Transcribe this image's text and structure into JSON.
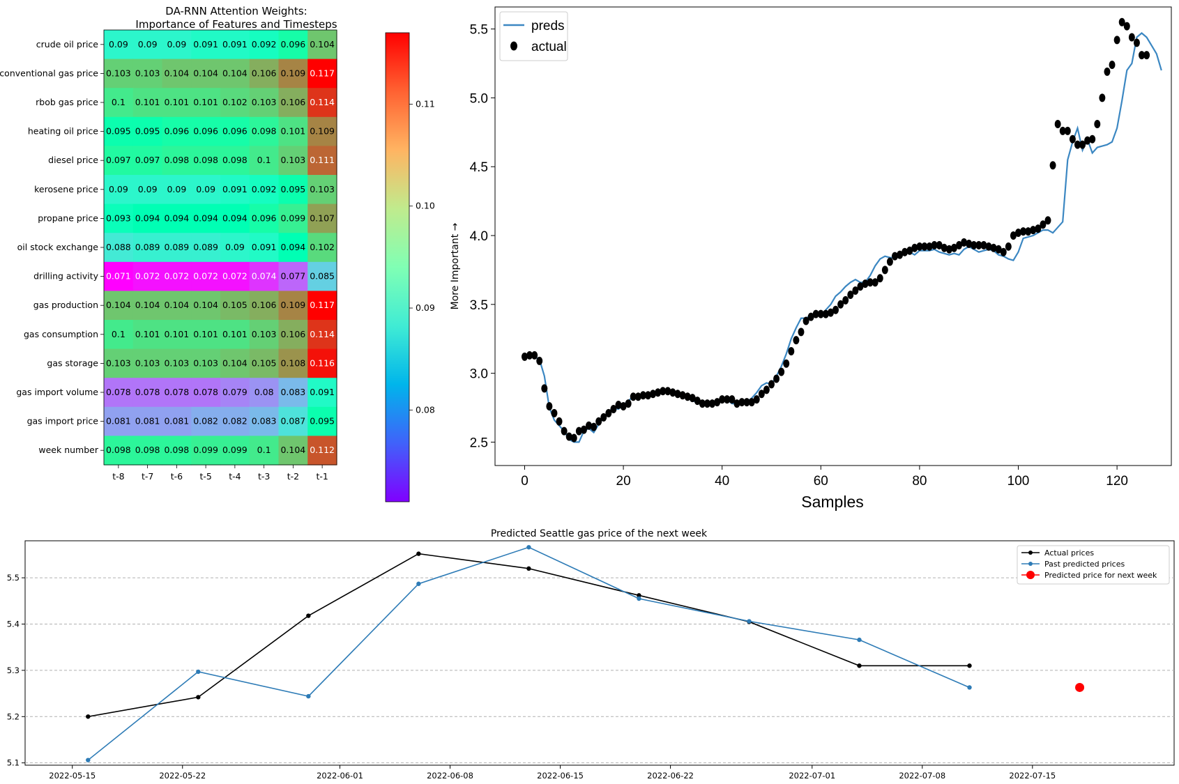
{
  "chart_data": [
    {
      "type": "heatmap",
      "title_line1": "DA-RNN Attention Weights:",
      "title_line2": "Importance of Features and Timesteps",
      "rows": [
        "crude oil price",
        "conventional gas price",
        "rbob gas price",
        "heating oil price",
        "diesel price",
        "kerosene price",
        "propane price",
        "oil stock exchange",
        "drilling activity",
        "gas production",
        "gas consumption",
        "gas storage",
        "gas import volume",
        "gas import price",
        "week number"
      ],
      "columns": [
        "t-8",
        "t-7",
        "t-6",
        "t-5",
        "t-4",
        "t-3",
        "t-2",
        "t-1"
      ],
      "values": [
        [
          0.09,
          0.09,
          0.09,
          0.091,
          0.091,
          0.092,
          0.096,
          0.104
        ],
        [
          0.103,
          0.103,
          0.104,
          0.104,
          0.104,
          0.106,
          0.109,
          0.117
        ],
        [
          0.1,
          0.101,
          0.101,
          0.101,
          0.102,
          0.103,
          0.106,
          0.114
        ],
        [
          0.095,
          0.095,
          0.096,
          0.096,
          0.096,
          0.098,
          0.101,
          0.109
        ],
        [
          0.097,
          0.097,
          0.098,
          0.098,
          0.098,
          0.1,
          0.103,
          0.111
        ],
        [
          0.09,
          0.09,
          0.09,
          0.09,
          0.091,
          0.092,
          0.095,
          0.103
        ],
        [
          0.093,
          0.094,
          0.094,
          0.094,
          0.094,
          0.096,
          0.099,
          0.107
        ],
        [
          0.088,
          0.089,
          0.089,
          0.089,
          0.09,
          0.091,
          0.094,
          0.102
        ],
        [
          0.071,
          0.072,
          0.072,
          0.072,
          0.072,
          0.074,
          0.077,
          0.085
        ],
        [
          0.104,
          0.104,
          0.104,
          0.104,
          0.105,
          0.106,
          0.109,
          0.117
        ],
        [
          0.1,
          0.101,
          0.101,
          0.101,
          0.101,
          0.103,
          0.106,
          0.114
        ],
        [
          0.103,
          0.103,
          0.103,
          0.103,
          0.104,
          0.105,
          0.108,
          0.116
        ],
        [
          0.078,
          0.078,
          0.078,
          0.078,
          0.079,
          0.08,
          0.083,
          0.091
        ],
        [
          0.081,
          0.081,
          0.081,
          0.082,
          0.082,
          0.083,
          0.087,
          0.095
        ],
        [
          0.098,
          0.098,
          0.098,
          0.099,
          0.099,
          0.1,
          0.104,
          0.112
        ]
      ],
      "colormap": "rainbow",
      "vmin": 0.071,
      "vmax": 0.117,
      "colorbar_ticks": [
        "0.08",
        "0.09",
        "0.10",
        "0.11"
      ],
      "colorbar_label": "More Important →"
    },
    {
      "type": "line",
      "xlabel": "Samples",
      "xlim": [
        -6,
        131
      ],
      "ylim": [
        2.33,
        5.66
      ],
      "x_ticks": [
        "0",
        "20",
        "40",
        "60",
        "80",
        "100",
        "120"
      ],
      "y_ticks": [
        "2.5",
        "3.0",
        "3.5",
        "4.0",
        "4.5",
        "5.0",
        "5.5"
      ],
      "legend": "top-left",
      "series": [
        {
          "name": "preds",
          "style": "line",
          "color": "#3b87c2",
          "values": [
            3.12,
            3.13,
            3.12,
            3.1,
            2.98,
            2.75,
            2.66,
            2.62,
            2.58,
            2.52,
            2.5,
            2.5,
            2.58,
            2.6,
            2.57,
            2.63,
            2.68,
            2.72,
            2.75,
            2.74,
            2.77,
            2.8,
            2.83,
            2.84,
            2.84,
            2.85,
            2.86,
            2.87,
            2.88,
            2.88,
            2.86,
            2.85,
            2.83,
            2.82,
            2.8,
            2.79,
            2.77,
            2.77,
            2.78,
            2.8,
            2.8,
            2.81,
            2.78,
            2.78,
            2.79,
            2.79,
            2.82,
            2.86,
            2.91,
            2.93,
            2.92,
            2.98,
            3.05,
            3.14,
            3.25,
            3.33,
            3.4,
            3.4,
            3.42,
            3.42,
            3.42,
            3.46,
            3.5,
            3.56,
            3.59,
            3.63,
            3.66,
            3.68,
            3.66,
            3.66,
            3.71,
            3.78,
            3.83,
            3.85,
            3.84,
            3.84,
            3.86,
            3.9,
            3.88,
            3.86,
            3.89,
            3.89,
            3.89,
            3.9,
            3.88,
            3.87,
            3.86,
            3.87,
            3.86,
            3.9,
            3.92,
            3.9,
            3.88,
            3.89,
            3.9,
            3.89,
            3.86,
            3.85,
            3.83,
            3.82,
            3.88,
            3.98,
            3.99,
            4.0,
            4.02,
            4.04,
            4.04,
            4.02,
            4.06,
            4.1,
            4.55,
            4.68,
            4.78,
            4.62,
            4.7,
            4.6,
            4.64,
            4.65,
            4.66,
            4.68,
            4.78,
            4.98,
            5.2,
            5.25,
            5.44,
            5.47,
            5.44,
            5.38,
            5.32,
            5.2
          ]
        },
        {
          "name": "actual",
          "style": "markers",
          "color": "#000000",
          "values": [
            3.12,
            3.13,
            3.13,
            3.09,
            2.89,
            2.76,
            2.71,
            2.65,
            2.58,
            2.54,
            2.53,
            2.58,
            2.59,
            2.62,
            2.61,
            2.65,
            2.68,
            2.71,
            2.74,
            2.77,
            2.76,
            2.78,
            2.83,
            2.83,
            2.84,
            2.84,
            2.85,
            2.86,
            2.87,
            2.87,
            2.86,
            2.85,
            2.84,
            2.83,
            2.82,
            2.8,
            2.78,
            2.78,
            2.78,
            2.79,
            2.81,
            2.81,
            2.81,
            2.78,
            2.79,
            2.79,
            2.79,
            2.81,
            2.85,
            2.88,
            2.92,
            2.96,
            3.01,
            3.07,
            3.16,
            3.24,
            3.3,
            3.38,
            3.41,
            3.43,
            3.43,
            3.43,
            3.44,
            3.46,
            3.5,
            3.53,
            3.57,
            3.6,
            3.63,
            3.65,
            3.66,
            3.66,
            3.69,
            3.75,
            3.81,
            3.85,
            3.86,
            3.88,
            3.89,
            3.91,
            3.92,
            3.92,
            3.92,
            3.93,
            3.93,
            3.91,
            3.9,
            3.91,
            3.93,
            3.95,
            3.94,
            3.93,
            3.93,
            3.93,
            3.92,
            3.91,
            3.9,
            3.88,
            3.92,
            4.0,
            4.02,
            4.03,
            4.03,
            4.04,
            4.05,
            4.08,
            4.11,
            4.51,
            4.81,
            4.76,
            4.76,
            4.7,
            4.66,
            4.66,
            4.69,
            4.7,
            4.81,
            5.0,
            5.19,
            5.24,
            5.42,
            5.55,
            5.52,
            5.44,
            5.4,
            5.31,
            5.31
          ]
        }
      ]
    },
    {
      "type": "line",
      "title": "Predicted Seattle gas price of the next week",
      "x_ticks": [
        "2022-05-15",
        "2022-05-22",
        "2022-06-01",
        "2022-06-08",
        "2022-06-15",
        "2022-06-22",
        "2022-07-01",
        "2022-07-08",
        "2022-07-15"
      ],
      "y_ticks": [
        "5.1",
        "5.2",
        "5.3",
        "5.4",
        "5.5"
      ],
      "xlim": [
        "2022-05-12",
        "2022-07-24"
      ],
      "ylim": [
        5.095,
        5.58
      ],
      "grid_y": true,
      "legend": "top-right",
      "series": [
        {
          "name": "Actual prices",
          "color": "#000000",
          "x": [
            "2022-05-16",
            "2022-05-23",
            "2022-05-30",
            "2022-06-06",
            "2022-06-13",
            "2022-06-20",
            "2022-06-27",
            "2022-07-04",
            "2022-07-11"
          ],
          "values": [
            5.2,
            5.242,
            5.418,
            5.552,
            5.52,
            5.462,
            5.405,
            5.31,
            5.31
          ]
        },
        {
          "name": "Past predicted prices",
          "color": "#2d7bb6",
          "x": [
            "2022-05-16",
            "2022-05-23",
            "2022-05-30",
            "2022-06-06",
            "2022-06-13",
            "2022-06-20",
            "2022-06-27",
            "2022-07-04",
            "2022-07-11"
          ],
          "values": [
            5.106,
            5.297,
            5.244,
            5.487,
            5.566,
            5.455,
            5.406,
            5.366,
            5.263
          ]
        },
        {
          "name": "Predicted price for next week",
          "color": "#ff0000",
          "x": [
            "2022-07-18"
          ],
          "values": [
            5.263
          ]
        }
      ]
    }
  ]
}
